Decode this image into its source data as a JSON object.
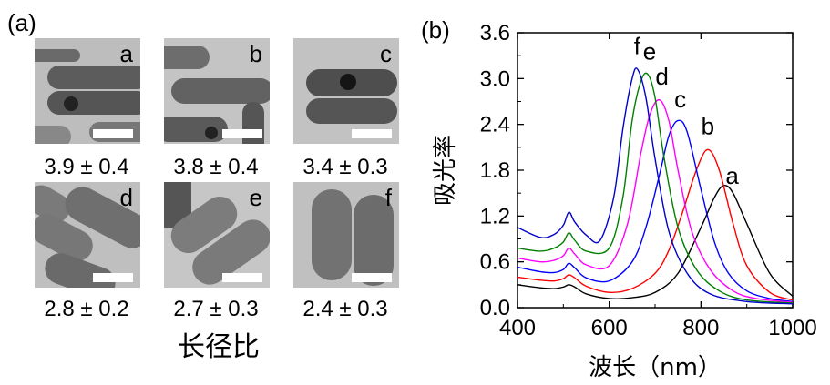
{
  "panel_a": {
    "label": "(a)",
    "images": [
      {
        "letter": "a",
        "ratio": "3.9 ± 0.4"
      },
      {
        "letter": "b",
        "ratio": "3.8 ± 0.4"
      },
      {
        "letter": "c",
        "ratio": "3.4 ± 0.3"
      },
      {
        "letter": "d",
        "ratio": "2.8 ± 0.2"
      },
      {
        "letter": "e",
        "ratio": "2.7 ± 0.3"
      },
      {
        "letter": "f",
        "ratio": "2.4 ± 0.3"
      }
    ],
    "axis_label": "长径比"
  },
  "panel_b": {
    "label": "(b)"
  },
  "chart_data": {
    "type": "line",
    "title": "",
    "xlabel": "波长（nm）",
    "ylabel": "吸光率",
    "xlim": [
      400,
      1000
    ],
    "ylim": [
      0.0,
      3.6
    ],
    "xticks": [
      400,
      600,
      800,
      1000
    ],
    "xtick_labels": [
      "400",
      "600",
      "800",
      "1000"
    ],
    "yticks": [
      0.0,
      0.6,
      1.2,
      1.8,
      2.4,
      3.0,
      3.6
    ],
    "ytick_labels": [
      "0.0",
      "0.6",
      "1.2",
      "1.8",
      "2.4",
      "3.0",
      "3.6"
    ],
    "series": [
      {
        "name": "a",
        "color": "#000000",
        "x": [
          400,
          450,
          480,
          500,
          512,
          525,
          550,
          600,
          650,
          700,
          750,
          800,
          830,
          850,
          870,
          900,
          950,
          1000
        ],
        "y": [
          0.3,
          0.26,
          0.25,
          0.27,
          0.3,
          0.27,
          0.18,
          0.12,
          0.13,
          0.2,
          0.45,
          1.05,
          1.45,
          1.6,
          1.5,
          1.1,
          0.45,
          0.15
        ]
      },
      {
        "name": "b",
        "color": "#ff0000",
        "x": [
          400,
          450,
          480,
          500,
          512,
          525,
          550,
          600,
          650,
          700,
          730,
          760,
          790,
          815,
          840,
          870,
          900,
          950,
          1000
        ],
        "y": [
          0.4,
          0.36,
          0.35,
          0.38,
          0.43,
          0.39,
          0.28,
          0.2,
          0.25,
          0.45,
          0.75,
          1.25,
          1.8,
          2.07,
          1.8,
          1.1,
          0.55,
          0.2,
          0.1
        ]
      },
      {
        "name": "c",
        "color": "#0000ff",
        "x": [
          400,
          450,
          480,
          500,
          512,
          525,
          550,
          600,
          650,
          680,
          710,
          730,
          750,
          770,
          800,
          830,
          860,
          900,
          950,
          1000
        ],
        "y": [
          0.53,
          0.47,
          0.46,
          0.5,
          0.58,
          0.52,
          0.39,
          0.35,
          0.6,
          1.05,
          1.75,
          2.25,
          2.45,
          2.3,
          1.55,
          0.85,
          0.45,
          0.22,
          0.12,
          0.08
        ]
      },
      {
        "name": "d",
        "color": "#ff00ff",
        "x": [
          400,
          450,
          480,
          500,
          512,
          525,
          550,
          600,
          640,
          670,
          690,
          710,
          730,
          750,
          780,
          820,
          870,
          920,
          1000
        ],
        "y": [
          0.65,
          0.6,
          0.62,
          0.68,
          0.78,
          0.7,
          0.56,
          0.55,
          1.1,
          2.05,
          2.55,
          2.72,
          2.45,
          1.8,
          1.0,
          0.5,
          0.22,
          0.12,
          0.07
        ]
      },
      {
        "name": "e",
        "color": "#008000",
        "x": [
          400,
          450,
          480,
          500,
          512,
          525,
          550,
          600,
          630,
          650,
          670,
          685,
          700,
          720,
          750,
          790,
          840,
          900,
          1000
        ],
        "y": [
          0.78,
          0.74,
          0.78,
          0.86,
          0.98,
          0.88,
          0.74,
          0.78,
          1.45,
          2.45,
          2.98,
          3.05,
          2.75,
          1.95,
          1.05,
          0.5,
          0.22,
          0.1,
          0.06
        ]
      },
      {
        "name": "f",
        "color": "#0000cc",
        "x": [
          400,
          450,
          480,
          500,
          512,
          525,
          550,
          580,
          610,
          630,
          650,
          662,
          680,
          700,
          730,
          770,
          820,
          900,
          1000
        ],
        "y": [
          1.05,
          0.92,
          0.96,
          1.08,
          1.25,
          1.12,
          0.95,
          0.88,
          1.45,
          2.35,
          3.0,
          3.12,
          2.75,
          1.95,
          1.0,
          0.45,
          0.18,
          0.08,
          0.05
        ]
      }
    ],
    "annotations": [
      {
        "text": "a",
        "x": 868,
        "y": 1.62
      },
      {
        "text": "b",
        "x": 815,
        "y": 2.27
      },
      {
        "text": "c",
        "x": 755,
        "y": 2.62
      },
      {
        "text": "d",
        "x": 715,
        "y": 2.92
      },
      {
        "text": "e",
        "x": 688,
        "y": 3.25
      },
      {
        "text": "f",
        "x": 661,
        "y": 3.32
      }
    ]
  }
}
